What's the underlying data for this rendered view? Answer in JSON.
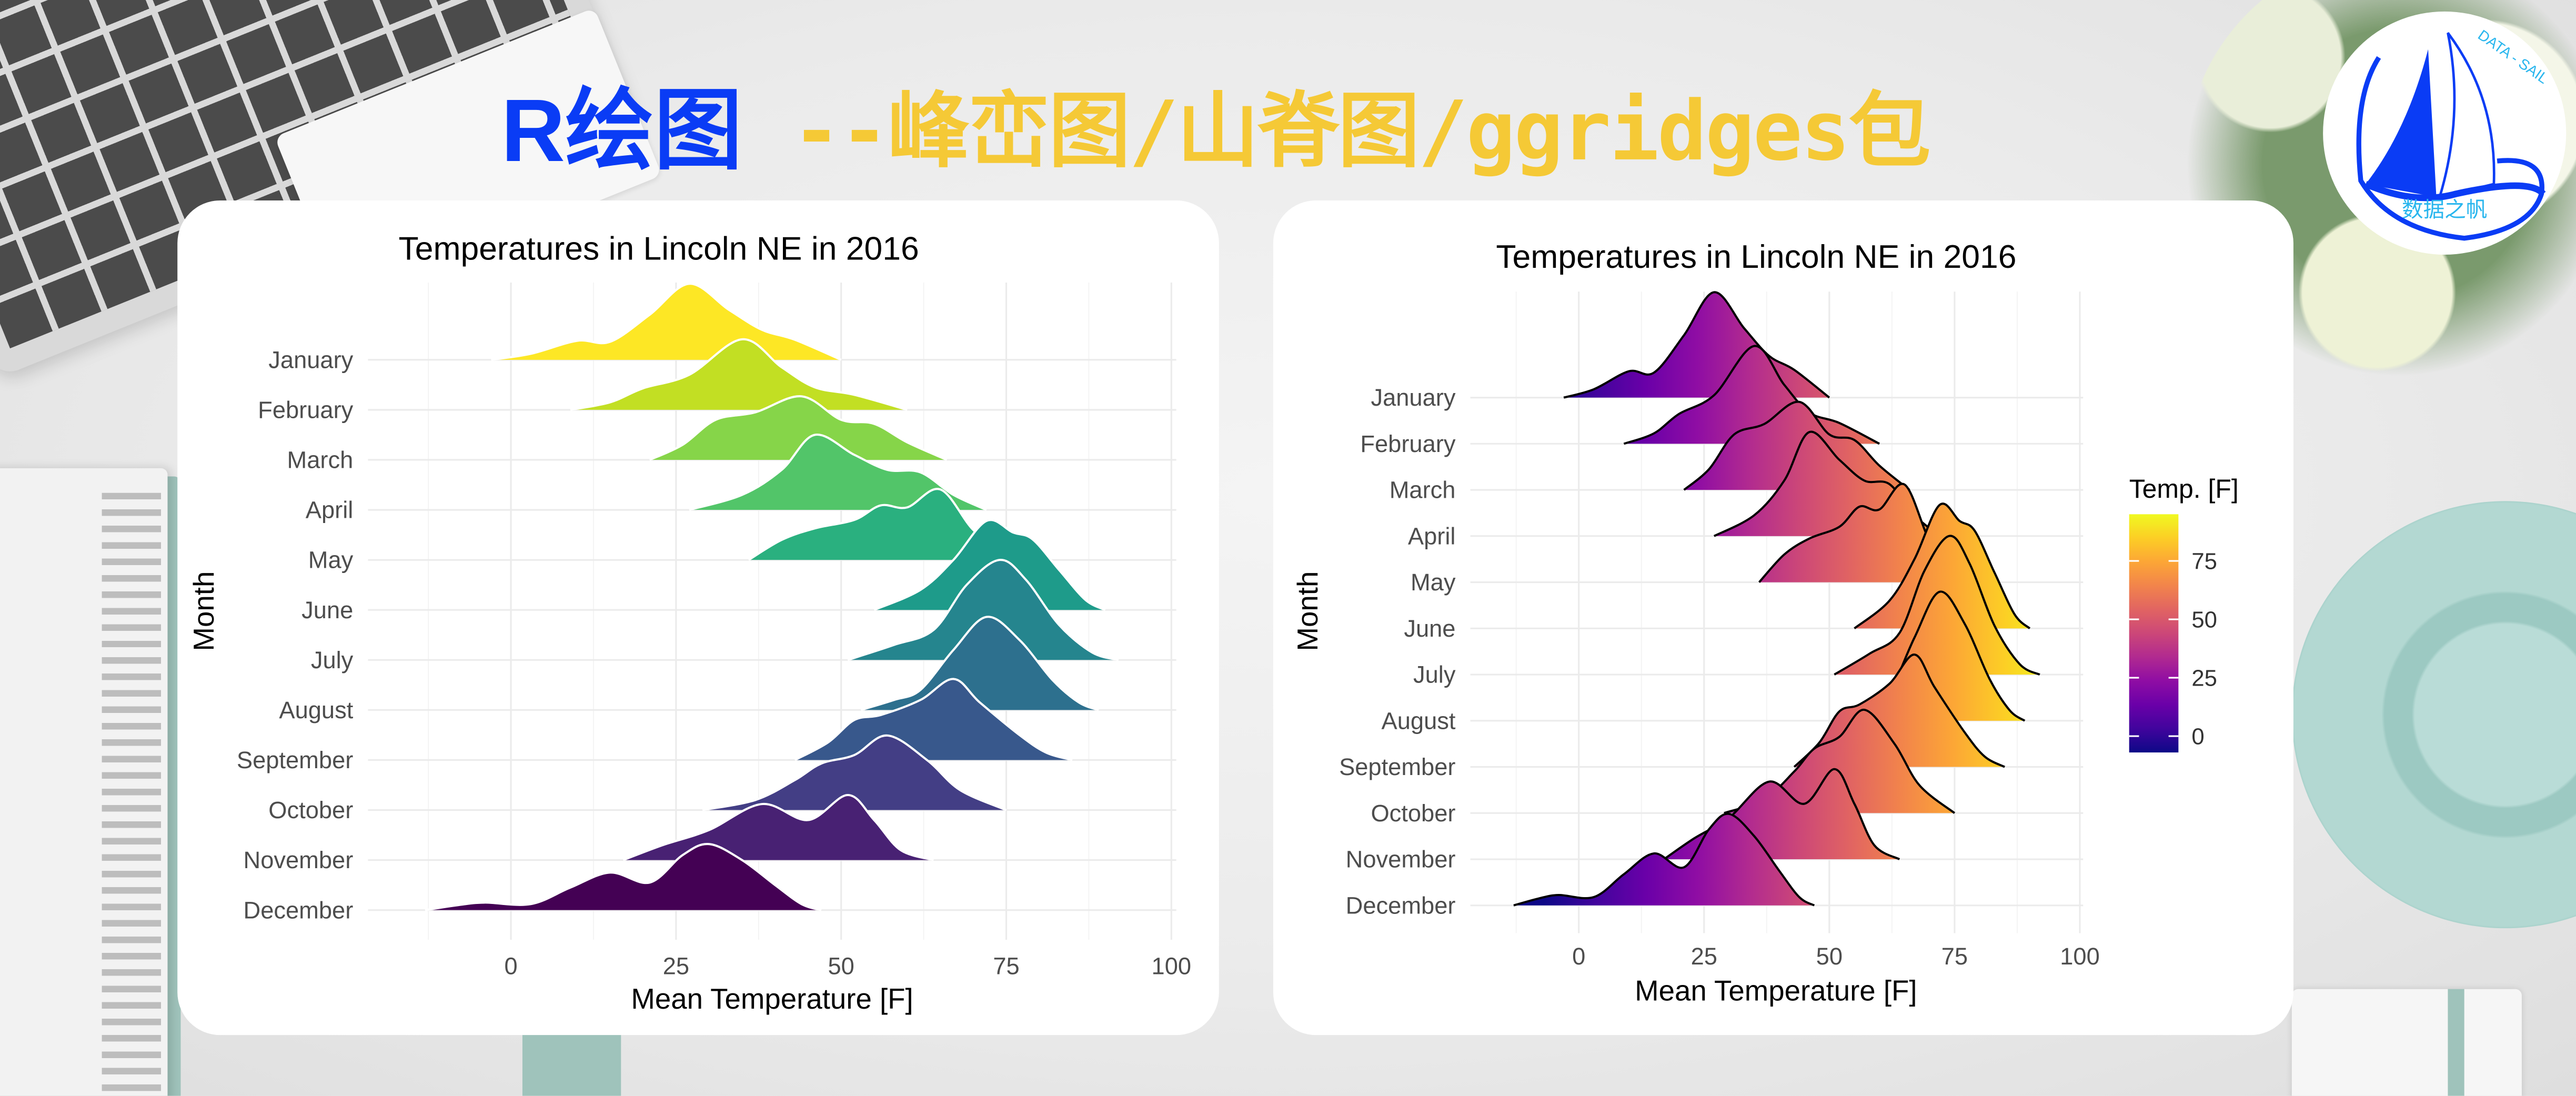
{
  "header": {
    "title_part1": "R绘图",
    "title_part2": "--峰峦图/山脊图/ggridges包"
  },
  "logo": {
    "text_en": "DATA - SAIL",
    "text_cn": "数据之帆"
  },
  "colors": {
    "title_blue": "#0a3cf5",
    "title_yellow": "#f5c936",
    "logo_blue": "#0a3cf5",
    "logo_cyan": "#29b6ee"
  },
  "chart_data": [
    {
      "type": "ridgeline",
      "title": "Temperatures in Lincoln NE in 2016",
      "xlabel": "Mean Temperature [F]",
      "ylabel": "Month",
      "xlim": [
        -15,
        100
      ],
      "xticks": [
        "0",
        "25",
        "50",
        "75",
        "100"
      ],
      "xtick_values": [
        0,
        25,
        50,
        75,
        100
      ],
      "grid": true,
      "outline_color": "#ffffff",
      "fill": "viridis by month",
      "fill_colors": [
        "#fde725",
        "#c2df23",
        "#86d549",
        "#52c569",
        "#2ab07f",
        "#1e9b8a",
        "#25858e",
        "#2d708e",
        "#38588c",
        "#433e85",
        "#482173",
        "#440154"
      ],
      "categories": [
        "January",
        "February",
        "March",
        "April",
        "May",
        "June",
        "July",
        "August",
        "September",
        "October",
        "November",
        "December"
      ],
      "series": [
        {
          "name": "January",
          "density": [
            [
              -3,
              0
            ],
            [
              3,
              0.12
            ],
            [
              10,
              0.38
            ],
            [
              15,
              0.36
            ],
            [
              21,
              0.9
            ],
            [
              27,
              1.52
            ],
            [
              33,
              1.0
            ],
            [
              38,
              0.6
            ],
            [
              43,
              0.4
            ],
            [
              50,
              0
            ]
          ]
        },
        {
          "name": "February",
          "density": [
            [
              9,
              0
            ],
            [
              15,
              0.15
            ],
            [
              20,
              0.43
            ],
            [
              27,
              0.7
            ],
            [
              35,
              1.41
            ],
            [
              41,
              0.85
            ],
            [
              46,
              0.45
            ],
            [
              52,
              0.3
            ],
            [
              60,
              0
            ]
          ]
        },
        {
          "name": "March",
          "density": [
            [
              21,
              0
            ],
            [
              26,
              0.3
            ],
            [
              31,
              0.8
            ],
            [
              37,
              0.95
            ],
            [
              44,
              1.27
            ],
            [
              50,
              0.8
            ],
            [
              55,
              0.72
            ],
            [
              60,
              0.35
            ],
            [
              66,
              0
            ]
          ]
        },
        {
          "name": "April",
          "density": [
            [
              27,
              0
            ],
            [
              35,
              0.3
            ],
            [
              41,
              0.8
            ],
            [
              46,
              1.5
            ],
            [
              52,
              1.1
            ],
            [
              57,
              0.8
            ],
            [
              62,
              0.75
            ],
            [
              67,
              0.3
            ],
            [
              72,
              0
            ]
          ]
        },
        {
          "name": "May",
          "density": [
            [
              36,
              0
            ],
            [
              41,
              0.4
            ],
            [
              46,
              0.63
            ],
            [
              52,
              0.8
            ],
            [
              56,
              1.09
            ],
            [
              60,
              1.05
            ],
            [
              65,
              1.41
            ],
            [
              70,
              0.6
            ],
            [
              75,
              0.1
            ],
            [
              78,
              0
            ]
          ]
        },
        {
          "name": "June",
          "density": [
            [
              55,
              0
            ],
            [
              62,
              0.4
            ],
            [
              67,
              1.0
            ],
            [
              72,
              1.78
            ],
            [
              76,
              1.55
            ],
            [
              79,
              1.41
            ],
            [
              83,
              0.8
            ],
            [
              87,
              0.2
            ],
            [
              90,
              0
            ]
          ]
        },
        {
          "name": "July",
          "density": [
            [
              51,
              0
            ],
            [
              58,
              0.3
            ],
            [
              64,
              0.6
            ],
            [
              69,
              1.5
            ],
            [
              74,
              2.0
            ],
            [
              78,
              1.6
            ],
            [
              83,
              0.7
            ],
            [
              88,
              0.15
            ],
            [
              92,
              0
            ]
          ]
        },
        {
          "name": "August",
          "density": [
            [
              53,
              0
            ],
            [
              58,
              0.2
            ],
            [
              62,
              0.4
            ],
            [
              67,
              1.2
            ],
            [
              72,
              1.86
            ],
            [
              77,
              1.4
            ],
            [
              82,
              0.6
            ],
            [
              86,
              0.15
            ],
            [
              89,
              0
            ]
          ]
        },
        {
          "name": "September",
          "density": [
            [
              43,
              0
            ],
            [
              48,
              0.35
            ],
            [
              52,
              0.8
            ],
            [
              56,
              0.9
            ],
            [
              62,
              1.2
            ],
            [
              67,
              1.62
            ],
            [
              71,
              1.15
            ],
            [
              77,
              0.5
            ],
            [
              81,
              0.15
            ],
            [
              85,
              0
            ]
          ]
        },
        {
          "name": "October",
          "density": [
            [
              29,
              0
            ],
            [
              37,
              0.2
            ],
            [
              43,
              0.6
            ],
            [
              47,
              0.93
            ],
            [
              52,
              1.1
            ],
            [
              57,
              1.49
            ],
            [
              63,
              1.0
            ],
            [
              68,
              0.4
            ],
            [
              75,
              0
            ]
          ]
        },
        {
          "name": "November",
          "density": [
            [
              17,
              0
            ],
            [
              23,
              0.3
            ],
            [
              30,
              0.6
            ],
            [
              38,
              1.12
            ],
            [
              45,
              0.8
            ],
            [
              51,
              1.3
            ],
            [
              55,
              0.8
            ],
            [
              59,
              0.2
            ],
            [
              64,
              0
            ]
          ]
        },
        {
          "name": "December",
          "density": [
            [
              -13,
              0
            ],
            [
              -8,
              0.1
            ],
            [
              -4,
              0.15
            ],
            [
              3,
              0.12
            ],
            [
              9,
              0.45
            ],
            [
              15,
              0.75
            ],
            [
              21,
              0.55
            ],
            [
              26,
              1.1
            ],
            [
              30,
              1.32
            ],
            [
              35,
              1.0
            ],
            [
              40,
              0.5
            ],
            [
              44,
              0.12
            ],
            [
              47,
              0
            ]
          ]
        }
      ]
    },
    {
      "type": "ridgeline",
      "title": "Temperatures in Lincoln NE in 2016",
      "xlabel": "Mean Temperature [F]",
      "ylabel": "Month",
      "xlim": [
        -15,
        100
      ],
      "xticks": [
        "0",
        "25",
        "50",
        "75",
        "100"
      ],
      "xtick_values": [
        0,
        25,
        50,
        75,
        100
      ],
      "grid": true,
      "outline_color": "#000000",
      "fill": "plasma gradient by temperature",
      "legend": {
        "title": "Temp. [F]",
        "ticks": [
          "0",
          "25",
          "50",
          "75"
        ],
        "tick_values": [
          0,
          25,
          50,
          75
        ],
        "limits": [
          -7,
          95
        ],
        "position": "right"
      },
      "colormap": [
        "#0d0887",
        "#41049d",
        "#6a00a8",
        "#8f0da4",
        "#b12a90",
        "#cc4778",
        "#e16462",
        "#f2844b",
        "#fca636",
        "#fcce25",
        "#f0f921"
      ],
      "categories": [
        "January",
        "February",
        "March",
        "April",
        "May",
        "June",
        "July",
        "August",
        "September",
        "October",
        "November",
        "December"
      ],
      "series": [
        {
          "name": "January",
          "density": [
            [
              -3,
              0
            ],
            [
              3,
              0.12
            ],
            [
              10,
              0.38
            ],
            [
              15,
              0.36
            ],
            [
              21,
              0.9
            ],
            [
              27,
              1.52
            ],
            [
              33,
              1.0
            ],
            [
              38,
              0.6
            ],
            [
              43,
              0.4
            ],
            [
              50,
              0
            ]
          ]
        },
        {
          "name": "February",
          "density": [
            [
              9,
              0
            ],
            [
              15,
              0.15
            ],
            [
              20,
              0.43
            ],
            [
              27,
              0.7
            ],
            [
              35,
              1.41
            ],
            [
              41,
              0.85
            ],
            [
              46,
              0.45
            ],
            [
              52,
              0.3
            ],
            [
              60,
              0
            ]
          ]
        },
        {
          "name": "March",
          "density": [
            [
              21,
              0
            ],
            [
              26,
              0.3
            ],
            [
              31,
              0.8
            ],
            [
              37,
              0.95
            ],
            [
              44,
              1.27
            ],
            [
              50,
              0.8
            ],
            [
              55,
              0.72
            ],
            [
              60,
              0.35
            ],
            [
              66,
              0
            ]
          ]
        },
        {
          "name": "April",
          "density": [
            [
              27,
              0
            ],
            [
              35,
              0.3
            ],
            [
              41,
              0.8
            ],
            [
              46,
              1.5
            ],
            [
              52,
              1.1
            ],
            [
              57,
              0.8
            ],
            [
              62,
              0.75
            ],
            [
              67,
              0.3
            ],
            [
              72,
              0
            ]
          ]
        },
        {
          "name": "May",
          "density": [
            [
              36,
              0
            ],
            [
              41,
              0.4
            ],
            [
              46,
              0.63
            ],
            [
              52,
              0.8
            ],
            [
              56,
              1.09
            ],
            [
              60,
              1.05
            ],
            [
              65,
              1.41
            ],
            [
              70,
              0.6
            ],
            [
              75,
              0.1
            ],
            [
              78,
              0
            ]
          ]
        },
        {
          "name": "June",
          "density": [
            [
              55,
              0
            ],
            [
              62,
              0.4
            ],
            [
              67,
              1.0
            ],
            [
              72,
              1.78
            ],
            [
              76,
              1.55
            ],
            [
              79,
              1.41
            ],
            [
              83,
              0.8
            ],
            [
              87,
              0.2
            ],
            [
              90,
              0
            ]
          ]
        },
        {
          "name": "July",
          "density": [
            [
              51,
              0
            ],
            [
              58,
              0.3
            ],
            [
              64,
              0.6
            ],
            [
              69,
              1.5
            ],
            [
              74,
              2.0
            ],
            [
              78,
              1.6
            ],
            [
              83,
              0.7
            ],
            [
              88,
              0.15
            ],
            [
              92,
              0
            ]
          ]
        },
        {
          "name": "August",
          "density": [
            [
              53,
              0
            ],
            [
              58,
              0.2
            ],
            [
              62,
              0.4
            ],
            [
              67,
              1.2
            ],
            [
              72,
              1.86
            ],
            [
              77,
              1.4
            ],
            [
              82,
              0.6
            ],
            [
              86,
              0.15
            ],
            [
              89,
              0
            ]
          ]
        },
        {
          "name": "September",
          "density": [
            [
              43,
              0
            ],
            [
              48,
              0.35
            ],
            [
              52,
              0.8
            ],
            [
              56,
              0.9
            ],
            [
              62,
              1.2
            ],
            [
              67,
              1.62
            ],
            [
              71,
              1.15
            ],
            [
              77,
              0.5
            ],
            [
              81,
              0.15
            ],
            [
              85,
              0
            ]
          ]
        },
        {
          "name": "October",
          "density": [
            [
              29,
              0
            ],
            [
              37,
              0.2
            ],
            [
              43,
              0.6
            ],
            [
              47,
              0.93
            ],
            [
              52,
              1.1
            ],
            [
              57,
              1.49
            ],
            [
              63,
              1.0
            ],
            [
              68,
              0.4
            ],
            [
              75,
              0
            ]
          ]
        },
        {
          "name": "November",
          "density": [
            [
              17,
              0
            ],
            [
              23,
              0.3
            ],
            [
              30,
              0.6
            ],
            [
              38,
              1.12
            ],
            [
              45,
              0.8
            ],
            [
              51,
              1.3
            ],
            [
              55,
              0.8
            ],
            [
              59,
              0.2
            ],
            [
              64,
              0
            ]
          ]
        },
        {
          "name": "December",
          "density": [
            [
              -13,
              0
            ],
            [
              -8,
              0.1
            ],
            [
              -4,
              0.15
            ],
            [
              3,
              0.12
            ],
            [
              9,
              0.45
            ],
            [
              15,
              0.75
            ],
            [
              21,
              0.55
            ],
            [
              26,
              1.1
            ],
            [
              30,
              1.32
            ],
            [
              35,
              1.0
            ],
            [
              40,
              0.5
            ],
            [
              44,
              0.12
            ],
            [
              47,
              0
            ]
          ]
        }
      ]
    }
  ]
}
